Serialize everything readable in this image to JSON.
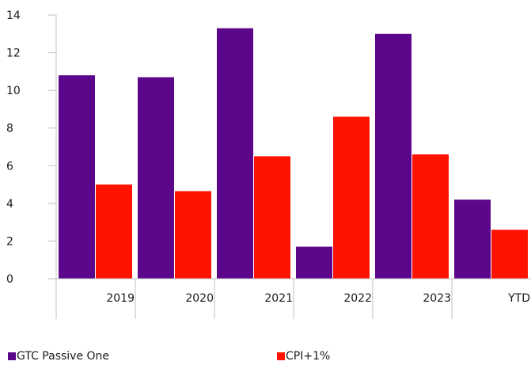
{
  "chart_data": {
    "type": "bar",
    "categories": [
      "2019",
      "2020",
      "2021",
      "2022",
      "2023",
      "YTD"
    ],
    "series": [
      {
        "name": "GTC Passive One",
        "color": "#5c068c",
        "values": [
          10.8,
          10.7,
          13.3,
          1.7,
          13.0,
          4.2
        ]
      },
      {
        "name": "CPI+1%",
        "color": "#ff1200",
        "values": [
          5.0,
          4.65,
          6.5,
          8.6,
          6.6,
          2.6
        ]
      }
    ],
    "yticks": [
      "0",
      "2",
      "4",
      "6",
      "8",
      "10",
      "12",
      "14"
    ],
    "ylim": [
      0,
      14
    ],
    "grid": false,
    "legend_position": "bottom"
  }
}
